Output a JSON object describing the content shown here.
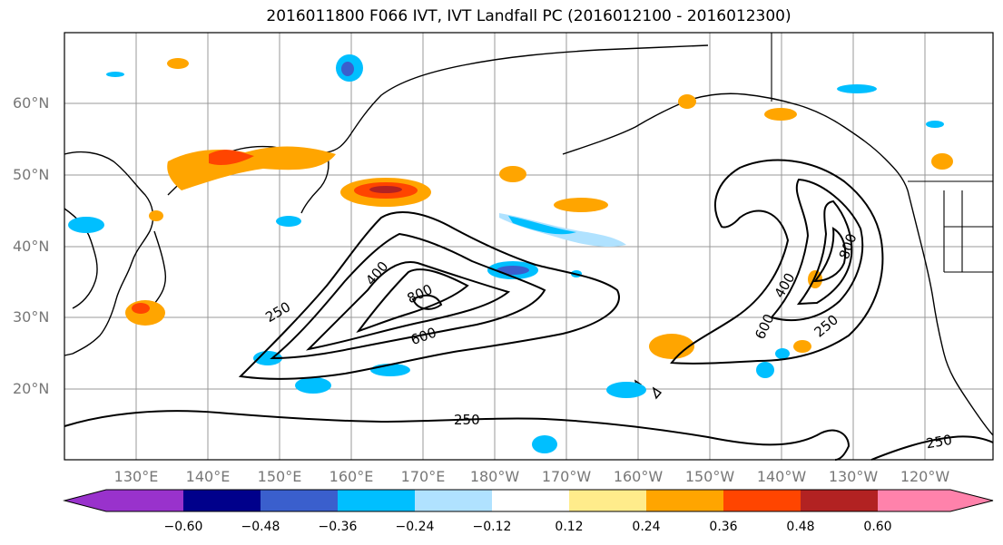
{
  "title": "2016011800 F066 IVT, IVT Landfall PC (2016012100 - 2016012300)",
  "lat_labels": [
    "60°N",
    "50°N",
    "40°N",
    "30°N",
    "20°N"
  ],
  "lon_labels": [
    "130°E",
    "140°E",
    "150°E",
    "160°E",
    "170°E",
    "180°W",
    "170°W",
    "160°W",
    "150°W",
    "140°W",
    "130°W",
    "120°W"
  ],
  "contour_labels": [
    "250",
    "400",
    "800",
    "600",
    "250",
    "400",
    "600",
    "800",
    "250",
    "250"
  ],
  "colorbar": {
    "ticks": [
      "−0.60",
      "−0.48",
      "−0.36",
      "−0.24",
      "−0.12",
      "0.12",
      "0.24",
      "0.36",
      "0.48",
      "0.60"
    ],
    "colors": [
      "#9932cc",
      "#00008b",
      "#3a5fcd",
      "#00bfff",
      "#b0e2ff",
      "#ffffff",
      "#ffec8b",
      "#ffa500",
      "#ff4500",
      "#b22222",
      "#ff82ab"
    ]
  }
}
